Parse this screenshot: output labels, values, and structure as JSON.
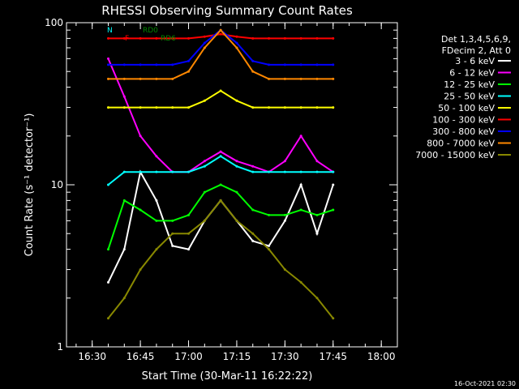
{
  "chart_data": {
    "type": "line",
    "title": "RHESSI Observing Summary Count Rates",
    "xlabel": "Start Time (30-Mar-11 16:22:22)",
    "ylabel": "Count Rate (s⁻¹ detector⁻¹)",
    "ylog": true,
    "ylim": [
      1,
      100
    ],
    "xlim": [
      "16:22",
      "18:05"
    ],
    "xticks": [
      "16:30",
      "16:45",
      "17:00",
      "17:15",
      "17:30",
      "17:45",
      "18:00"
    ],
    "yticks": [
      "1",
      "10",
      "100"
    ],
    "footer": "16-Oct-2021 02:30",
    "legend_header": [
      "Det 1,3,4,5,6,9,",
      "FDecim 2, Att 0"
    ],
    "flags": [
      {
        "label": "N",
        "color": "#00ffff"
      },
      {
        "label": "F",
        "color": "#ff0000"
      },
      {
        "label": "RD0",
        "color": "#008800"
      },
      {
        "label": "RD6",
        "color": "#008800"
      }
    ],
    "x": [
      "16:35",
      "16:40",
      "16:45",
      "16:50",
      "16:55",
      "17:00",
      "17:05",
      "17:10",
      "17:15",
      "17:20",
      "17:25",
      "17:30",
      "17:35",
      "17:40",
      "17:45"
    ],
    "series": [
      {
        "name": "3 - 6 keV",
        "color": "#ffffff",
        "values": [
          2.5,
          4.0,
          12,
          8,
          4.2,
          4.0,
          6,
          8,
          6,
          4.5,
          4.2,
          6,
          10,
          5,
          10
        ]
      },
      {
        "name": "6 - 12 keV",
        "color": "#ff00ff",
        "values": [
          60,
          35,
          20,
          15,
          12,
          12,
          14,
          16,
          14,
          13,
          12,
          14,
          20,
          14,
          12
        ]
      },
      {
        "name": "12 - 25 keV",
        "color": "#00ff00",
        "values": [
          4,
          8,
          7,
          6,
          6,
          6.5,
          9,
          10,
          9,
          7,
          6.5,
          6.5,
          7,
          6.5,
          7
        ]
      },
      {
        "name": "25 - 50 keV",
        "color": "#00ffff",
        "values": [
          10,
          12,
          12,
          12,
          12,
          12,
          13,
          15,
          13,
          12,
          12,
          12,
          12,
          12,
          12
        ]
      },
      {
        "name": "50 - 100 keV",
        "color": "#ffff00",
        "values": [
          30,
          30,
          30,
          30,
          30,
          30,
          33,
          38,
          33,
          30,
          30,
          30,
          30,
          30,
          30
        ]
      },
      {
        "name": "100 - 300 keV",
        "color": "#ff0000",
        "values": [
          80,
          80,
          80,
          80,
          80,
          80,
          82,
          85,
          82,
          80,
          80,
          80,
          80,
          80,
          80
        ]
      },
      {
        "name": "300 - 800 keV",
        "color": "#0000ff",
        "values": [
          55,
          55,
          55,
          55,
          55,
          58,
          75,
          90,
          75,
          58,
          55,
          55,
          55,
          55,
          55
        ]
      },
      {
        "name": "800 - 7000 keV",
        "color": "#ff8800",
        "values": [
          45,
          45,
          45,
          45,
          45,
          50,
          70,
          90,
          70,
          50,
          45,
          45,
          45,
          45,
          45
        ]
      },
      {
        "name": "7000 - 15000 keV",
        "color": "#888800",
        "values": [
          1.5,
          2,
          3,
          4,
          5,
          5,
          6,
          8,
          6,
          5,
          4,
          3,
          2.5,
          2,
          1.5
        ]
      }
    ]
  }
}
